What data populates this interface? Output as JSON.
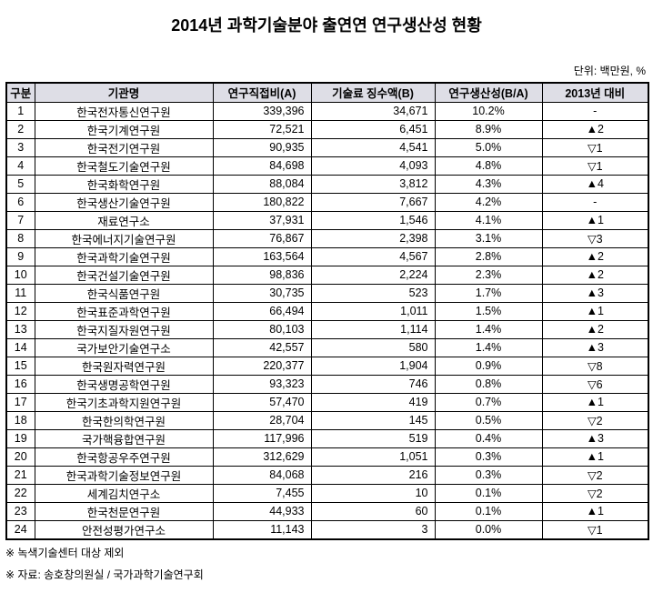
{
  "title": "2014년 과학기술분야 출연연 연구생산성 현황",
  "unit_label": "단위: 백만원, %",
  "table": {
    "columns": [
      "구분",
      "기관명",
      "연구직접비(A)",
      "기술료 징수액(B)",
      "연구생산성(B/A)",
      "2013년 대비"
    ],
    "rows": [
      [
        "1",
        "한국전자통신연구원",
        "339,396",
        "34,671",
        "10.2%",
        "-"
      ],
      [
        "2",
        "한국기계연구원",
        "72,521",
        "6,451",
        "8.9%",
        "▲2"
      ],
      [
        "3",
        "한국전기연구원",
        "90,935",
        "4,541",
        "5.0%",
        "▽1"
      ],
      [
        "4",
        "한국철도기술연구원",
        "84,698",
        "4,093",
        "4.8%",
        "▽1"
      ],
      [
        "5",
        "한국화학연구원",
        "88,084",
        "3,812",
        "4.3%",
        "▲4"
      ],
      [
        "6",
        "한국생산기술연구원",
        "180,822",
        "7,667",
        "4.2%",
        "-"
      ],
      [
        "7",
        "재료연구소",
        "37,931",
        "1,546",
        "4.1%",
        "▲1"
      ],
      [
        "8",
        "한국에너지기술연구원",
        "76,867",
        "2,398",
        "3.1%",
        "▽3"
      ],
      [
        "9",
        "한국과학기술연구원",
        "163,564",
        "4,567",
        "2.8%",
        "▲2"
      ],
      [
        "10",
        "한국건설기술연구원",
        "98,836",
        "2,224",
        "2.3%",
        "▲2"
      ],
      [
        "11",
        "한국식품연구원",
        "30,735",
        "523",
        "1.7%",
        "▲3"
      ],
      [
        "12",
        "한국표준과학연구원",
        "66,494",
        "1,011",
        "1.5%",
        "▲1"
      ],
      [
        "13",
        "한국지질자원연구원",
        "80,103",
        "1,114",
        "1.4%",
        "▲2"
      ],
      [
        "14",
        "국가보안기술연구소",
        "42,557",
        "580",
        "1.4%",
        "▲3"
      ],
      [
        "15",
        "한국원자력연구원",
        "220,377",
        "1,904",
        "0.9%",
        "▽8"
      ],
      [
        "16",
        "한국생명공학연구원",
        "93,323",
        "746",
        "0.8%",
        "▽6"
      ],
      [
        "17",
        "한국기초과학지원연구원",
        "57,470",
        "419",
        "0.7%",
        "▲1"
      ],
      [
        "18",
        "한국한의학연구원",
        "28,704",
        "145",
        "0.5%",
        "▽2"
      ],
      [
        "19",
        "국가핵융합연구원",
        "117,996",
        "519",
        "0.4%",
        "▲3"
      ],
      [
        "20",
        "한국항공우주연구원",
        "312,629",
        "1,051",
        "0.3%",
        "▲1"
      ],
      [
        "21",
        "한국과학기술정보연구원",
        "84,068",
        "216",
        "0.3%",
        "▽2"
      ],
      [
        "22",
        "세계김치연구소",
        "7,455",
        "10",
        "0.1%",
        "▽2"
      ],
      [
        "23",
        "한국천문연구원",
        "44,933",
        "60",
        "0.1%",
        "▲1"
      ],
      [
        "24",
        "안전성평가연구소",
        "11,143",
        "3",
        "0.0%",
        "▽1"
      ]
    ]
  },
  "footnotes": [
    "※ 녹색기술센터 대상 제외",
    "※ 자료: 송호창의원실 / 국가과학기술연구회"
  ],
  "colors": {
    "header_bg": "#dedee6",
    "border": "#000000",
    "text": "#000000"
  }
}
